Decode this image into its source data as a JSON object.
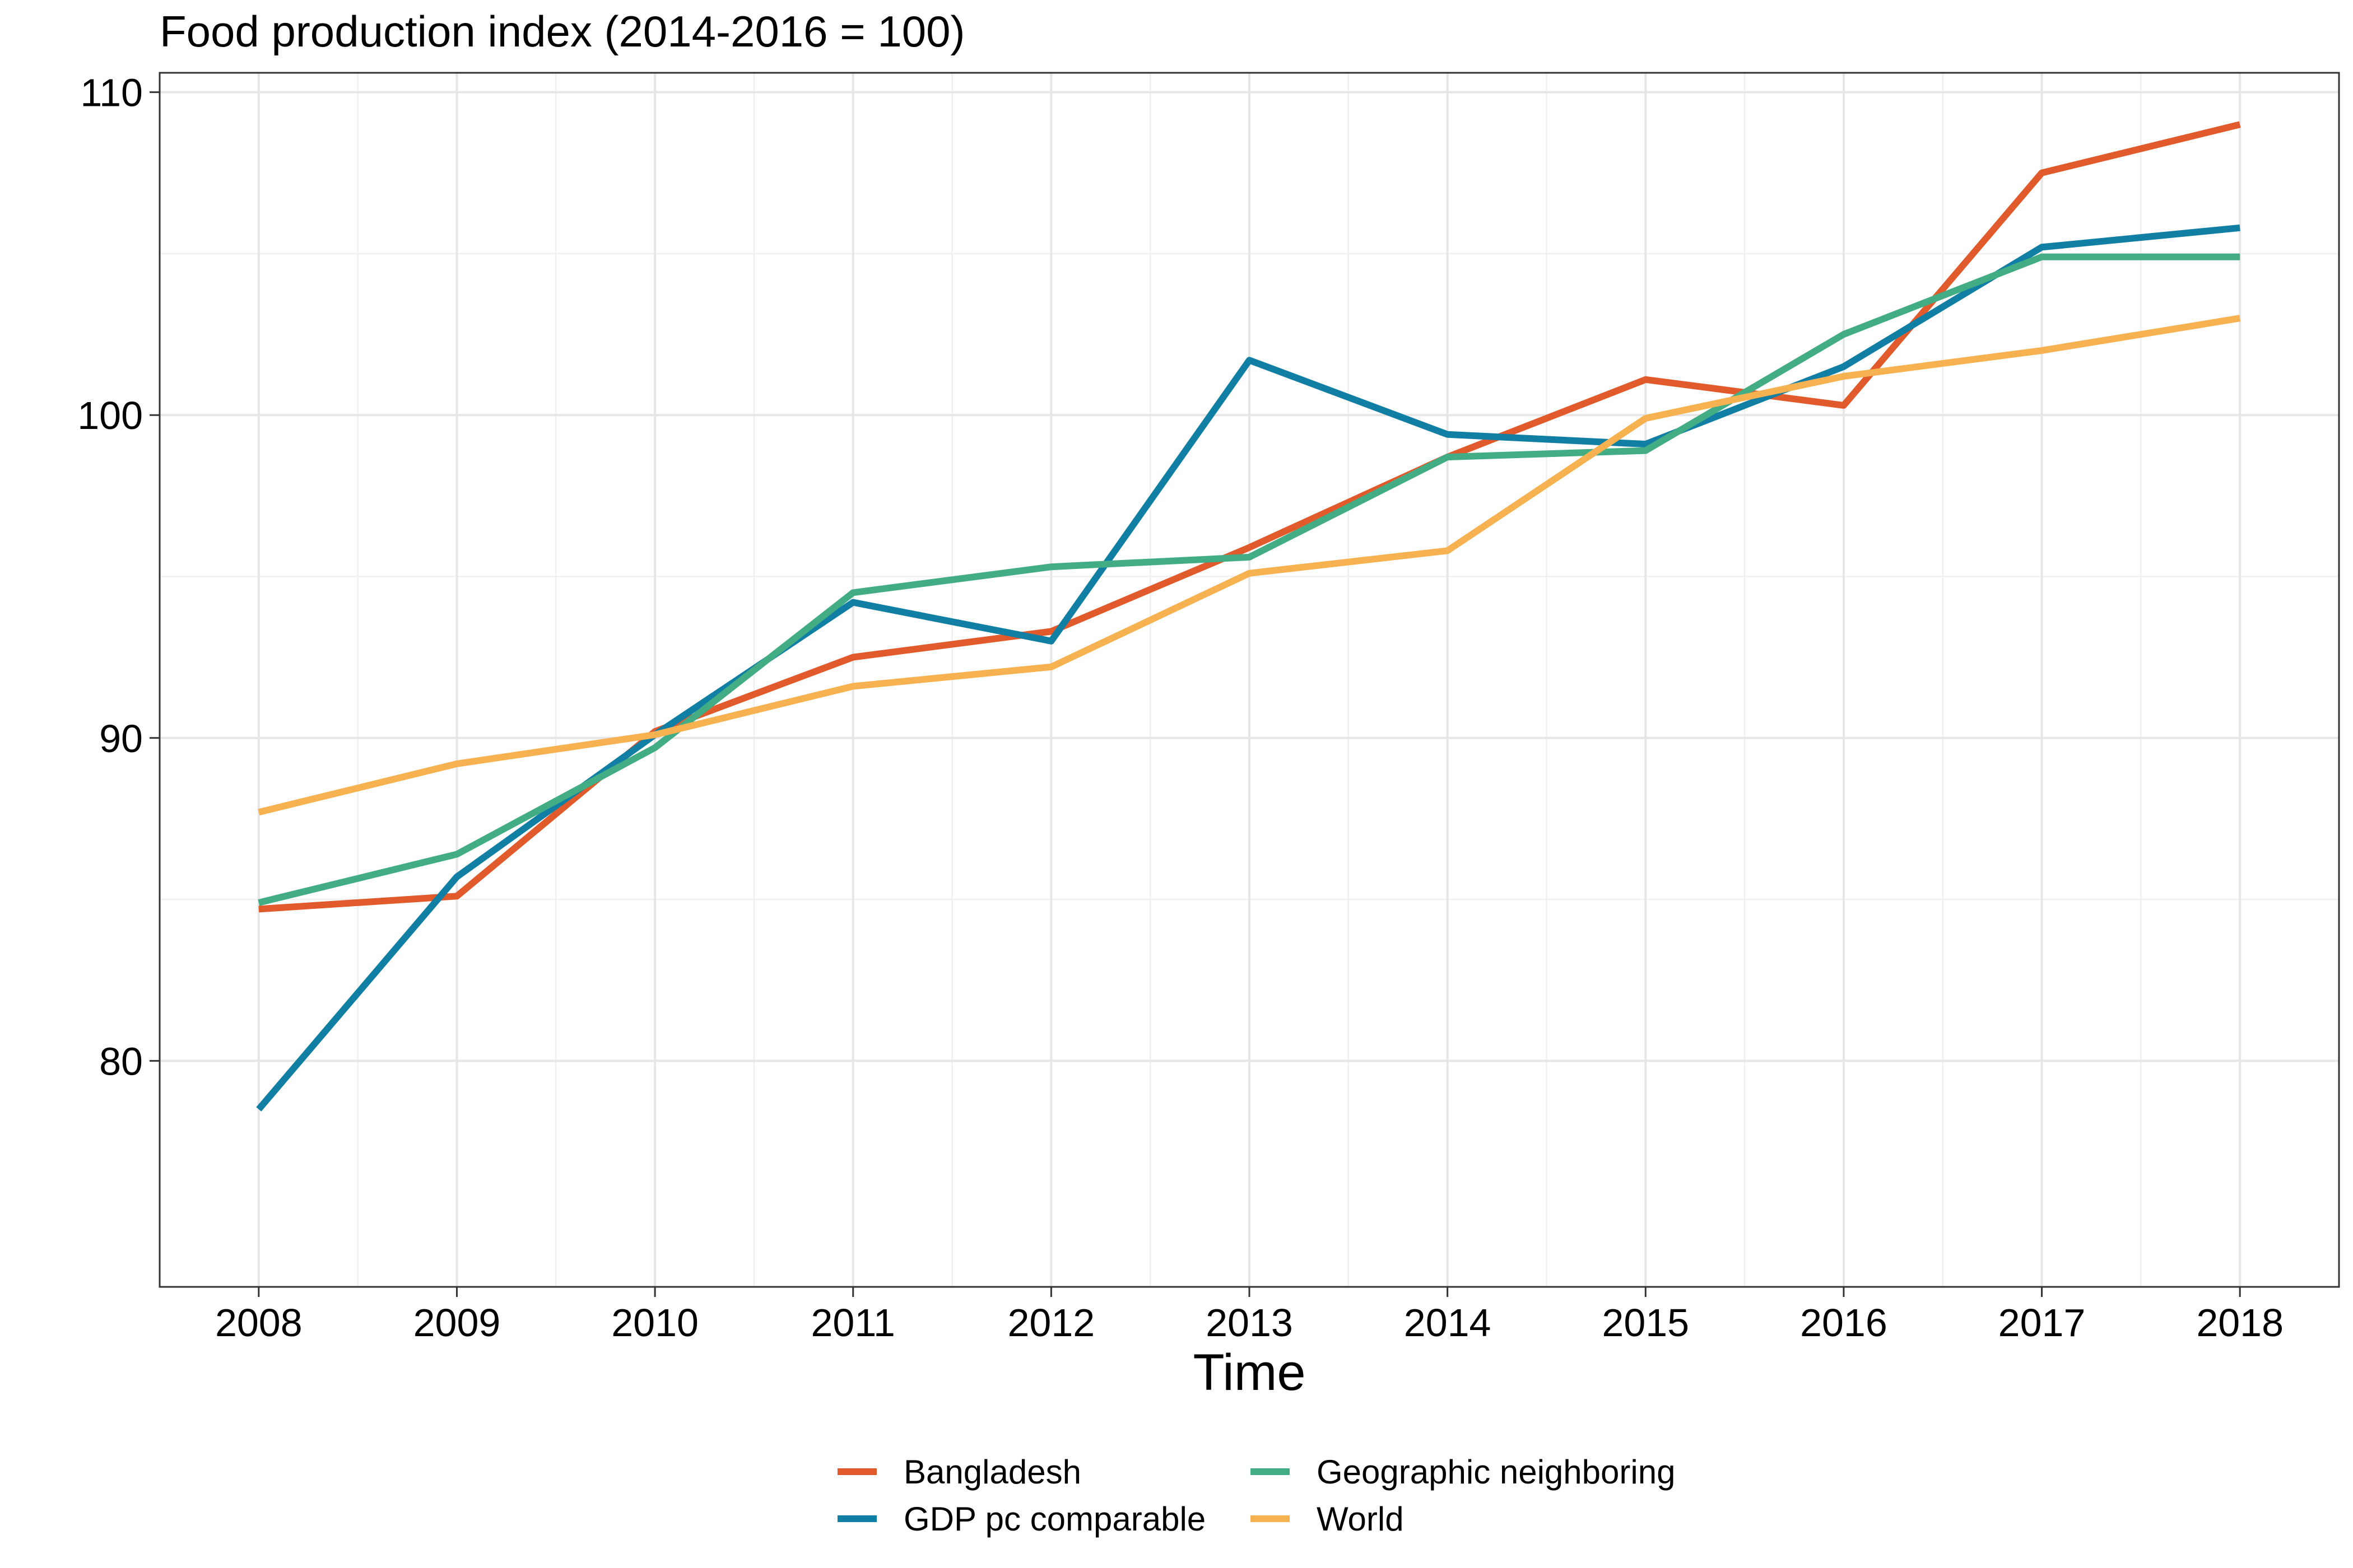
{
  "chart_data": {
    "type": "line",
    "title": "Food production index (2014-2016 = 100)",
    "xlabel": "Time",
    "ylabel": "",
    "x": [
      2008,
      2009,
      2010,
      2011,
      2012,
      2013,
      2014,
      2015,
      2016,
      2017,
      2018
    ],
    "xlim": [
      2007.5,
      2018.5
    ],
    "ylim": [
      73,
      110.6
    ],
    "yticks": [
      80,
      90,
      100,
      110
    ],
    "grid": true,
    "legend_position": "bottom",
    "series": [
      {
        "name": "Bangladesh",
        "color": "#E05A2B",
        "values": [
          84.7,
          85.1,
          90.2,
          92.5,
          93.3,
          95.9,
          98.7,
          101.1,
          100.3,
          107.5,
          109.0
        ]
      },
      {
        "name": "GDP pc comparable",
        "color": "#117EA3",
        "values": [
          78.5,
          85.7,
          90.1,
          94.2,
          93.0,
          101.7,
          99.4,
          99.1,
          101.5,
          105.2,
          105.8
        ]
      },
      {
        "name": "Geographic neighboring",
        "color": "#42AD84",
        "values": [
          84.9,
          86.4,
          89.7,
          94.5,
          95.3,
          95.6,
          98.7,
          98.9,
          102.5,
          104.9,
          104.9
        ]
      },
      {
        "name": "World",
        "color": "#F6B150",
        "values": [
          87.7,
          89.2,
          90.1,
          91.6,
          92.2,
          95.1,
          95.8,
          99.9,
          101.2,
          102.0,
          103.0
        ]
      }
    ]
  }
}
